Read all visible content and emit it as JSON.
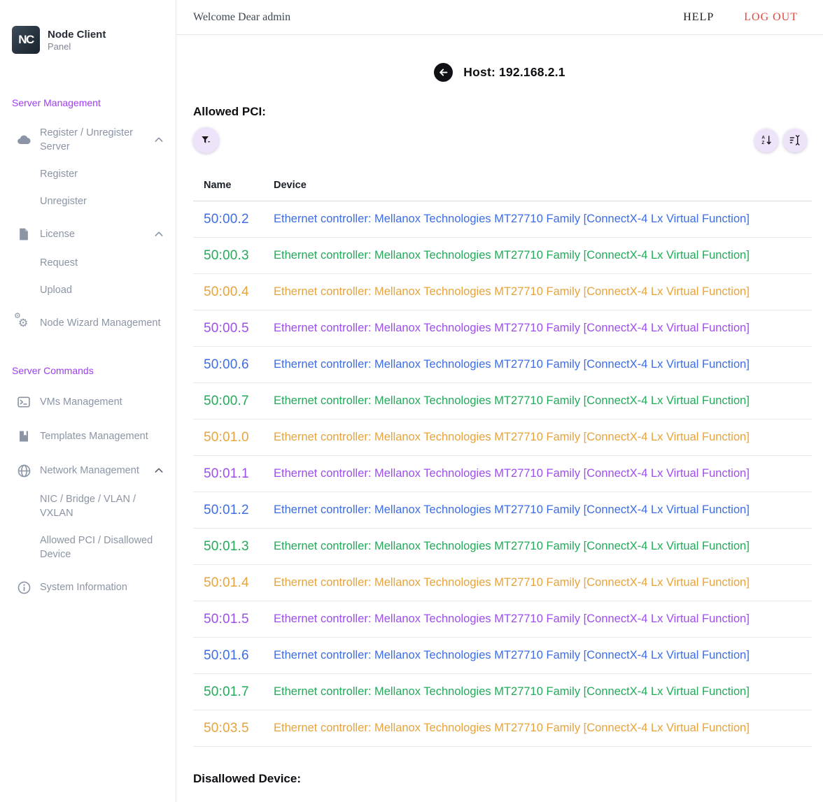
{
  "colors": {
    "accent_purple": "#a13bf7",
    "lavender_button": "#ede4fa",
    "logout_red": "#e8483f",
    "row_blue": "#3d6de4",
    "row_green": "#23aa5a",
    "row_orange": "#e7a33c",
    "row_purple": "#9d4fed"
  },
  "sidebar": {
    "logo": {
      "abbr": "NC",
      "title": "Node Client",
      "subtitle": "Panel"
    },
    "sections": [
      {
        "label": "Server Management",
        "items": [
          {
            "label": "Register / Unregister Server",
            "icon": "cloud-icon",
            "expanded": true,
            "children": [
              "Register",
              "Unregister"
            ]
          },
          {
            "label": "License",
            "icon": "file-icon",
            "expanded": true,
            "children": [
              "Request",
              "Upload"
            ]
          },
          {
            "label": "Node Wizard Management",
            "icon": "gears-icon"
          }
        ]
      },
      {
        "label": "Server Commands",
        "items": [
          {
            "label": "VMs Management",
            "icon": "terminal-icon"
          },
          {
            "label": "Templates Management",
            "icon": "template-icon"
          },
          {
            "label": "Network Management",
            "icon": "globe-icon",
            "expanded": true,
            "children": [
              "NIC / Bridge / VLAN / VXLAN",
              "Allowed PCI / Disallowed Device"
            ]
          },
          {
            "label": "System Information",
            "icon": "info-icon"
          }
        ]
      }
    ]
  },
  "topbar": {
    "welcome": "Welcome Dear admin",
    "help_label": "HELP",
    "logout_label": "LOG OUT"
  },
  "main": {
    "host_title": "Host: 192.168.2.1",
    "allowed_pci_heading": "Allowed PCI:",
    "disallowed_heading": "Disallowed Device:",
    "table": {
      "columns": [
        "Name",
        "Device"
      ],
      "device_text": "Ethernet controller: Mellanox Technologies MT27710 Family [ConnectX-4 Lx Virtual Function]",
      "rows": [
        {
          "name": "50:00.2",
          "color": "row_blue"
        },
        {
          "name": "50:00.3",
          "color": "row_green"
        },
        {
          "name": "50:00.4",
          "color": "row_orange"
        },
        {
          "name": "50:00.5",
          "color": "row_purple"
        },
        {
          "name": "50:00.6",
          "color": "row_blue"
        },
        {
          "name": "50:00.7",
          "color": "row_green"
        },
        {
          "name": "50:01.0",
          "color": "row_orange"
        },
        {
          "name": "50:01.1",
          "color": "row_purple"
        },
        {
          "name": "50:01.2",
          "color": "row_blue"
        },
        {
          "name": "50:01.3",
          "color": "row_green"
        },
        {
          "name": "50:01.4",
          "color": "row_orange"
        },
        {
          "name": "50:01.5",
          "color": "row_purple"
        },
        {
          "name": "50:01.6",
          "color": "row_blue"
        },
        {
          "name": "50:01.7",
          "color": "row_green"
        },
        {
          "name": "50:03.5",
          "color": "row_orange"
        }
      ]
    }
  }
}
